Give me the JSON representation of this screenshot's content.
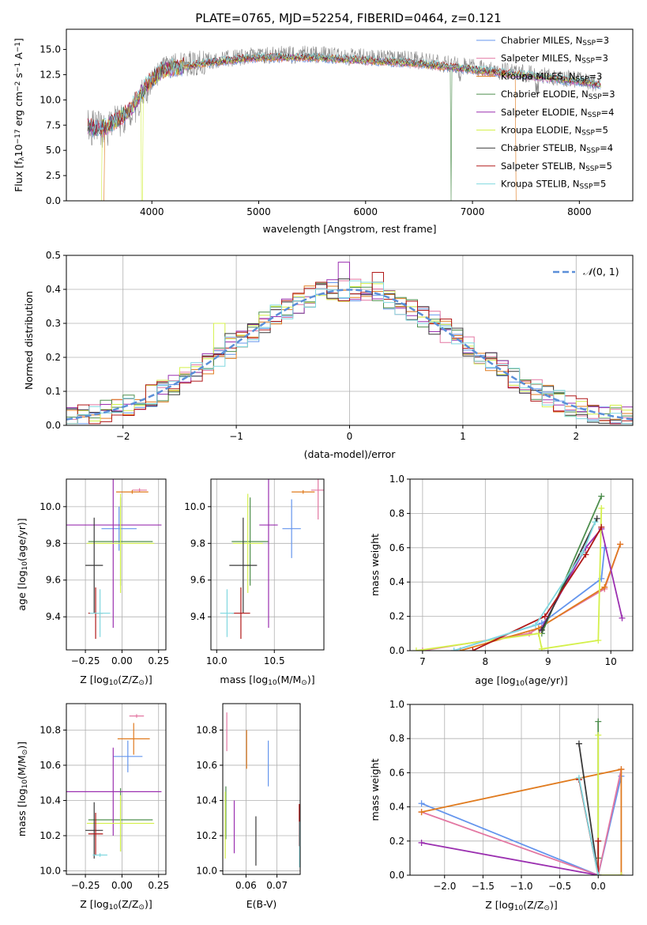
{
  "figure": {
    "title": "PLATE=0765, MJD=52254, FIBERID=0464, z=0.121"
  },
  "colors": {
    "Chabrier MILES": "#6495ed",
    "Salpeter MILES": "#e377a2",
    "Kroupa MILES": "#e07b1f",
    "Chabrier ELODIE": "#4f8f4f",
    "Salpeter ELODIE": "#9b30b0",
    "Kroupa ELODIE": "#d4f04a",
    "Chabrier STELIB": "#3a3a3a",
    "Salpeter STELIB": "#b01818",
    "Kroupa STELIB": "#80d8e0",
    "data_spectrum": "#888888",
    "normal_curve": "#5b8fd8",
    "grid": "#b0b0b0"
  },
  "chart_data": [
    {
      "id": "spectrum",
      "type": "line",
      "title": "PLATE=0765, MJD=52254, FIBERID=0464, z=0.121",
      "xlabel": "wavelength [Angstrom, rest frame]",
      "ylabel_parts": [
        "Flux [f",
        "λ",
        "10",
        "−17",
        " erg cm",
        "−2",
        " s",
        "−1",
        " A",
        "−1",
        "]"
      ],
      "xlim": [
        3200,
        8500
      ],
      "ylim": [
        0,
        17
      ],
      "xticks": [
        4000,
        5000,
        6000,
        7000,
        8000
      ],
      "yticks": [
        0.0,
        2.5,
        5.0,
        7.5,
        10.0,
        12.5,
        15.0
      ],
      "ytick_labels": [
        "0.0",
        "2.5",
        "5.0",
        "7.5",
        "10.0",
        "12.5",
        "15.0"
      ],
      "grid": false,
      "legend_position": "right",
      "legend": [
        {
          "base": "Chabrier MILES, N",
          "sub": "SSP",
          "tail": "=3",
          "key": "Chabrier MILES"
        },
        {
          "base": "Salpeter MILES, N",
          "sub": "SSP",
          "tail": "=3",
          "key": "Salpeter MILES"
        },
        {
          "base": "Kroupa MILES, N",
          "sub": "SSP",
          "tail": "=3",
          "key": "Kroupa MILES"
        },
        {
          "base": "Chabrier ELODIE, N",
          "sub": "SSP",
          "tail": "=3",
          "key": "Chabrier ELODIE"
        },
        {
          "base": "Salpeter ELODIE, N",
          "sub": "SSP",
          "tail": "=4",
          "key": "Salpeter ELODIE"
        },
        {
          "base": "Kroupa ELODIE, N",
          "sub": "SSP",
          "tail": "=5",
          "key": "Kroupa ELODIE"
        },
        {
          "base": "Chabrier STELIB, N",
          "sub": "SSP",
          "tail": "=4",
          "key": "Chabrier STELIB"
        },
        {
          "base": "Salpeter STELIB, N",
          "sub": "SSP",
          "tail": "=5",
          "key": "Salpeter STELIB"
        },
        {
          "base": "Kroupa STELIB, N",
          "sub": "SSP",
          "tail": "=5",
          "key": "Kroupa STELIB"
        }
      ],
      "data_trend": {
        "x": [
          3400,
          3550,
          3700,
          3800,
          3950,
          4100,
          4300,
          4600,
          5000,
          5500,
          6000,
          6500,
          7000,
          7500,
          8000,
          8200
        ],
        "y": [
          7.3,
          7.0,
          7.9,
          8.6,
          11.2,
          13.2,
          13.5,
          14.0,
          14.4,
          14.5,
          14.2,
          13.9,
          13.2,
          12.6,
          12.0,
          11.6
        ]
      },
      "model_trend": {
        "x": [
          3400,
          3550,
          3700,
          3800,
          3950,
          4100,
          4300,
          4600,
          5000,
          5500,
          6000,
          6500,
          7000,
          7500,
          8000,
          8200
        ],
        "y": [
          7.3,
          7.2,
          8.2,
          9.0,
          11.5,
          13.0,
          13.3,
          13.8,
          14.2,
          14.2,
          13.9,
          13.6,
          13.0,
          12.4,
          11.8,
          11.5
        ]
      },
      "model_features": [
        {
          "series": "Kroupa MILES",
          "dip_x": 3545,
          "note": "drop to 0 at blue edge"
        },
        {
          "series": "Kroupa ELODIE",
          "dip_x": 3910,
          "note": "drop to 0"
        },
        {
          "series": "Chabrier ELODIE",
          "dip_x": 6800,
          "note": "drop to 0"
        },
        {
          "series": "Kroupa MILES",
          "dip_x": 7415,
          "note": "drop to 0 at red edge"
        }
      ]
    },
    {
      "id": "residuals",
      "type": "line",
      "xlabel": "(data-model)/error",
      "ylabel": "Normed distribution",
      "xlim": [
        -2.5,
        2.5
      ],
      "ylim": [
        0,
        0.5
      ],
      "xticks": [
        -2,
        -1,
        0,
        1,
        2
      ],
      "xtick_labels": [
        "−2",
        "−1",
        "0",
        "1",
        "2"
      ],
      "yticks": [
        0.0,
        0.1,
        0.2,
        0.3,
        0.4,
        0.5
      ],
      "ytick_labels": [
        "0.0",
        "0.1",
        "0.2",
        "0.3",
        "0.4",
        "0.5"
      ],
      "grid": true,
      "legend_position": "top-right",
      "legend_label": "N(0,1)",
      "legend_label_script": "𝒩",
      "legend_label_rest": "(0, 1)",
      "bin_width": 0.1,
      "bin_start": -2.5,
      "outlier_bins": [
        {
          "x": -1.15,
          "y": 0.3,
          "series": "Kroupa ELODIE"
        },
        {
          "x": -1.05,
          "y": 0.27,
          "series": "Chabrier STELIB"
        },
        {
          "x": -0.05,
          "y": 0.48,
          "series": "Salpeter ELODIE"
        },
        {
          "x": 0.25,
          "y": 0.45,
          "series": "Salpeter STELIB"
        }
      ]
    },
    {
      "id": "age_vs_Z",
      "type": "scatter",
      "xlabel_parts": [
        "Z [log",
        "10",
        "(Z/Z",
        "⊙",
        ")]"
      ],
      "ylabel_parts": [
        "age  [log",
        "10",
        "(age/yr)]"
      ],
      "xlim": [
        -0.38,
        0.3
      ],
      "ylim": [
        9.22,
        10.15
      ],
      "xticks": [
        -0.25,
        0.0,
        0.25
      ],
      "xtick_labels": [
        "−0.25",
        "0.00",
        "0.25"
      ],
      "yticks": [
        9.4,
        9.6,
        9.8,
        10.0
      ],
      "ytick_labels": [
        "9.4",
        "9.6",
        "9.8",
        "10.0"
      ],
      "grid": true,
      "points": [
        {
          "s": "Chabrier MILES",
          "x": -0.02,
          "y": 9.88,
          "xerr": 0.12,
          "yerr": 0.12
        },
        {
          "s": "Salpeter MILES",
          "x": 0.12,
          "y": 10.09,
          "xerr": 0.05,
          "yerr": 0.01
        },
        {
          "s": "Kroupa MILES",
          "x": 0.07,
          "y": 10.08,
          "xerr": 0.11,
          "yerr": 0.01
        },
        {
          "s": "Chabrier ELODIE",
          "x": -0.01,
          "y": 9.81,
          "xerr": 0.22,
          "yerr": 0.24
        },
        {
          "s": "Salpeter ELODIE",
          "x": -0.06,
          "y": 9.9,
          "xerr": 0.33,
          "yerr": 0.56
        },
        {
          "s": "Kroupa ELODIE",
          "x": -0.01,
          "y": 9.8,
          "xerr": 0.23,
          "yerr": 0.27
        },
        {
          "s": "Chabrier STELIB",
          "x": -0.19,
          "y": 9.68,
          "xerr": 0.06,
          "yerr": 0.26
        },
        {
          "s": "Salpeter STELIB",
          "x": -0.18,
          "y": 9.42,
          "xerr": 0.05,
          "yerr": 0.14
        },
        {
          "s": "Kroupa STELIB",
          "x": -0.15,
          "y": 9.42,
          "xerr": 0.07,
          "yerr": 0.13
        }
      ]
    },
    {
      "id": "age_vs_mass",
      "type": "scatter",
      "xlabel_parts": [
        "mass [log",
        "10",
        "(M/M",
        "⊙",
        ")]"
      ],
      "ylabel_parts": [],
      "xlim": [
        9.95,
        10.93
      ],
      "ylim": [
        9.22,
        10.15
      ],
      "xticks": [
        10.0,
        10.5
      ],
      "xtick_labels": [
        "10.0",
        "10.5"
      ],
      "yticks": [
        9.4,
        9.6,
        9.8,
        10.0
      ],
      "ytick_labels": [
        "9.4",
        "9.6",
        "9.8",
        "10.0"
      ],
      "grid": true,
      "points": [
        {
          "s": "Chabrier MILES",
          "x": 10.65,
          "y": 9.88,
          "xerr": 0.08,
          "yerr": 0.16
        },
        {
          "s": "Salpeter MILES",
          "x": 10.88,
          "y": 10.09,
          "xerr": 0.06,
          "yerr": 0.16
        },
        {
          "s": "Kroupa MILES",
          "x": 10.75,
          "y": 10.08,
          "xerr": 0.1,
          "yerr": 0.01
        },
        {
          "s": "Chabrier ELODIE",
          "x": 10.29,
          "y": 9.81,
          "xerr": 0.16,
          "yerr": 0.24
        },
        {
          "s": "Salpeter ELODIE",
          "x": 10.45,
          "y": 9.9,
          "xerr": 0.08,
          "yerr": 0.56
        },
        {
          "s": "Kroupa ELODIE",
          "x": 10.27,
          "y": 9.8,
          "xerr": 0.13,
          "yerr": 0.27
        },
        {
          "s": "Chabrier STELIB",
          "x": 10.23,
          "y": 9.68,
          "xerr": 0.12,
          "yerr": 0.26
        },
        {
          "s": "Salpeter STELIB",
          "x": 10.21,
          "y": 9.42,
          "xerr": 0.08,
          "yerr": 0.14
        },
        {
          "s": "Kroupa STELIB",
          "x": 10.09,
          "y": 9.42,
          "xerr": 0.06,
          "yerr": 0.13
        }
      ]
    },
    {
      "id": "weight_vs_age",
      "type": "line",
      "xlabel_parts": [
        "age  [log",
        "10",
        "(age/yr)]"
      ],
      "ylabel": "mass weight",
      "xlim": [
        6.8,
        10.35
      ],
      "ylim": [
        0,
        1
      ],
      "xticks": [
        7,
        8,
        9,
        10
      ],
      "xtick_labels": [
        "7",
        "8",
        "9",
        "10"
      ],
      "yticks": [
        0.0,
        0.2,
        0.4,
        0.6,
        0.8,
        1.0
      ],
      "ytick_labels": [
        "0.0",
        "0.2",
        "0.4",
        "0.6",
        "0.8",
        "1.0"
      ],
      "grid": true,
      "series": [
        {
          "s": "Chabrier MILES",
          "x": [
            7.5,
            8.9,
            9.85,
            9.9
          ],
          "y": [
            0.0,
            0.16,
            0.42,
            0.6
          ]
        },
        {
          "s": "Salpeter MILES",
          "x": [
            7.0,
            8.7,
            9.9,
            10.15
          ],
          "y": [
            0.0,
            0.1,
            0.36,
            0.62
          ]
        },
        {
          "s": "Kroupa MILES",
          "x": [
            7.6,
            8.85,
            9.9,
            10.15
          ],
          "y": [
            0.0,
            0.13,
            0.37,
            0.62
          ]
        },
        {
          "s": "Chabrier ELODIE",
          "x": [
            8.9,
            9.85
          ],
          "y": [
            0.1,
            0.9
          ]
        },
        {
          "s": "Salpeter ELODIE",
          "x": [
            8.85,
            9.6,
            9.85,
            10.18
          ],
          "y": [
            0.1,
            0.6,
            0.71,
            0.19
          ]
        },
        {
          "s": "Kroupa ELODIE",
          "x": [
            6.9,
            8.85,
            8.9,
            9.8,
            9.85
          ],
          "y": [
            0.0,
            0.1,
            0.01,
            0.06,
            0.83
          ]
        },
        {
          "s": "Chabrier STELIB",
          "x": [
            8.9,
            9.78
          ],
          "y": [
            0.12,
            0.77
          ]
        },
        {
          "s": "Salpeter STELIB",
          "x": [
            7.8,
            8.95,
            9.6,
            9.85
          ],
          "y": [
            0.0,
            0.2,
            0.56,
            0.72
          ]
        },
        {
          "s": "Kroupa STELIB",
          "x": [
            7.5,
            8.8,
            9.55,
            9.75
          ],
          "y": [
            0.0,
            0.15,
            0.57,
            0.75
          ]
        }
      ]
    },
    {
      "id": "mass_vs_Z",
      "type": "scatter",
      "xlabel_parts": [
        "Z [log",
        "10",
        "(Z/Z",
        "⊙",
        ")]"
      ],
      "ylabel_parts": [
        "mass [log",
        "10",
        "(M/M",
        "⊙",
        ")]"
      ],
      "xlim": [
        -0.38,
        0.3
      ],
      "ylim": [
        9.98,
        10.95
      ],
      "xticks": [
        -0.25,
        0.0,
        0.25
      ],
      "xtick_labels": [
        "−0.25",
        "0.00",
        "0.25"
      ],
      "yticks": [
        10.0,
        10.2,
        10.4,
        10.6,
        10.8
      ],
      "ytick_labels": [
        "10.0",
        "10.2",
        "10.4",
        "10.6",
        "10.8"
      ],
      "grid": true,
      "points": [
        {
          "s": "Chabrier MILES",
          "x": 0.04,
          "y": 10.65,
          "xerr": 0.1,
          "yerr": 0.09
        },
        {
          "s": "Salpeter MILES",
          "x": 0.1,
          "y": 10.88,
          "xerr": 0.05,
          "yerr": 0.01
        },
        {
          "s": "Kroupa MILES",
          "x": 0.08,
          "y": 10.75,
          "xerr": 0.11,
          "yerr": 0.09
        },
        {
          "s": "Chabrier ELODIE",
          "x": -0.01,
          "y": 10.29,
          "xerr": 0.22,
          "yerr": 0.18
        },
        {
          "s": "Salpeter ELODIE",
          "x": -0.06,
          "y": 10.45,
          "xerr": 0.33,
          "yerr": 0.25
        },
        {
          "s": "Kroupa ELODIE",
          "x": -0.01,
          "y": 10.27,
          "xerr": 0.23,
          "yerr": 0.16
        },
        {
          "s": "Chabrier STELIB",
          "x": -0.19,
          "y": 10.23,
          "xerr": 0.06,
          "yerr": 0.16
        },
        {
          "s": "Salpeter STELIB",
          "x": -0.18,
          "y": 10.21,
          "xerr": 0.05,
          "yerr": 0.12
        },
        {
          "s": "Kroupa STELIB",
          "x": -0.15,
          "y": 10.09,
          "xerr": 0.05,
          "yerr": 0.01
        }
      ]
    },
    {
      "id": "mass_vs_EBV",
      "type": "scatter",
      "xlabel": "E(B-V)",
      "xlim": [
        0.0525,
        0.0775
      ],
      "ylim": [
        9.98,
        10.95
      ],
      "xticks": [
        0.06,
        0.07
      ],
      "xtick_labels": [
        "0.06",
        "0.07"
      ],
      "yticks": [
        10.0,
        10.2,
        10.4,
        10.6,
        10.8
      ],
      "ytick_labels": [
        "10.0",
        "10.2",
        "10.4",
        "10.6",
        "10.8"
      ],
      "grid": true,
      "points": [
        {
          "s": "Chabrier MILES",
          "x": 0.0672,
          "y": 10.61,
          "yerr": 0.13
        },
        {
          "s": "Salpeter MILES",
          "x": 0.0538,
          "y": 10.79,
          "yerr": 0.11
        },
        {
          "s": "Kroupa MILES",
          "x": 0.0602,
          "y": 10.69,
          "yerr": 0.11
        },
        {
          "s": "Chabrier ELODIE",
          "x": 0.0535,
          "y": 10.33,
          "yerr": 0.15
        },
        {
          "s": "Salpeter ELODIE",
          "x": 0.0562,
          "y": 10.25,
          "yerr": 0.15
        },
        {
          "s": "Kroupa ELODIE",
          "x": 0.0533,
          "y": 10.26,
          "yerr": 0.19
        },
        {
          "s": "Chabrier STELIB",
          "x": 0.0632,
          "y": 10.17,
          "yerr": 0.14
        },
        {
          "s": "Salpeter STELIB",
          "x": 0.0772,
          "y": 10.26,
          "yerr": 0.12
        },
        {
          "s": "Kroupa STELIB",
          "x": 0.0773,
          "y": 10.15,
          "yerr": 0.13
        }
      ]
    },
    {
      "id": "weight_vs_Z",
      "type": "line",
      "xlabel_parts": [
        "Z [log",
        "10",
        "(Z/Z",
        "⊙",
        ")]"
      ],
      "ylabel": "mass weight",
      "xlim": [
        -2.45,
        0.45
      ],
      "ylim": [
        0,
        1
      ],
      "xticks": [
        -2.0,
        -1.5,
        -1.0,
        -0.5,
        0.0
      ],
      "xtick_labels": [
        "−2.0",
        "−1.5",
        "−1.0",
        "−0.5",
        "0.0"
      ],
      "yticks": [
        0.0,
        0.2,
        0.4,
        0.6,
        0.8,
        1.0
      ],
      "ytick_labels": [
        "0.0",
        "0.2",
        "0.4",
        "0.6",
        "0.8",
        "1.0"
      ],
      "grid": true,
      "series": [
        {
          "s": "Chabrier MILES",
          "x": [
            -2.3,
            0.0,
            0.3
          ],
          "y": [
            0.42,
            0.0,
            0.58
          ]
        },
        {
          "s": "Salpeter MILES",
          "x": [
            -2.3,
            0.0,
            0.3
          ],
          "y": [
            0.37,
            0.0,
            0.62
          ]
        },
        {
          "s": "Kroupa MILES",
          "x": [
            -2.3,
            0.3,
            0.3
          ],
          "y": [
            0.37,
            0.62,
            0.0
          ]
        },
        {
          "s": "Chabrier ELODIE",
          "x": [
            0.0,
            0.0
          ],
          "y": [
            0.1,
            0.9
          ]
        },
        {
          "s": "Salpeter ELODIE",
          "x": [
            -2.3,
            0.0
          ],
          "y": [
            0.19,
            0.0
          ]
        },
        {
          "s": "Kroupa ELODIE",
          "x": [
            0.0,
            0.0,
            0.0,
            0.3
          ],
          "y": [
            0.0,
            0.82,
            0.0,
            0.0
          ]
        },
        {
          "s": "Chabrier STELIB",
          "x": [
            -0.25,
            0.0
          ],
          "y": [
            0.77,
            0.0
          ]
        },
        {
          "s": "Salpeter STELIB",
          "x": [
            -0.25,
            0.0,
            0.0
          ],
          "y": [
            0.56,
            0.0,
            0.2
          ]
        },
        {
          "s": "Kroupa STELIB",
          "x": [
            -0.25,
            0.0
          ],
          "y": [
            0.57,
            0.0
          ]
        }
      ]
    }
  ]
}
